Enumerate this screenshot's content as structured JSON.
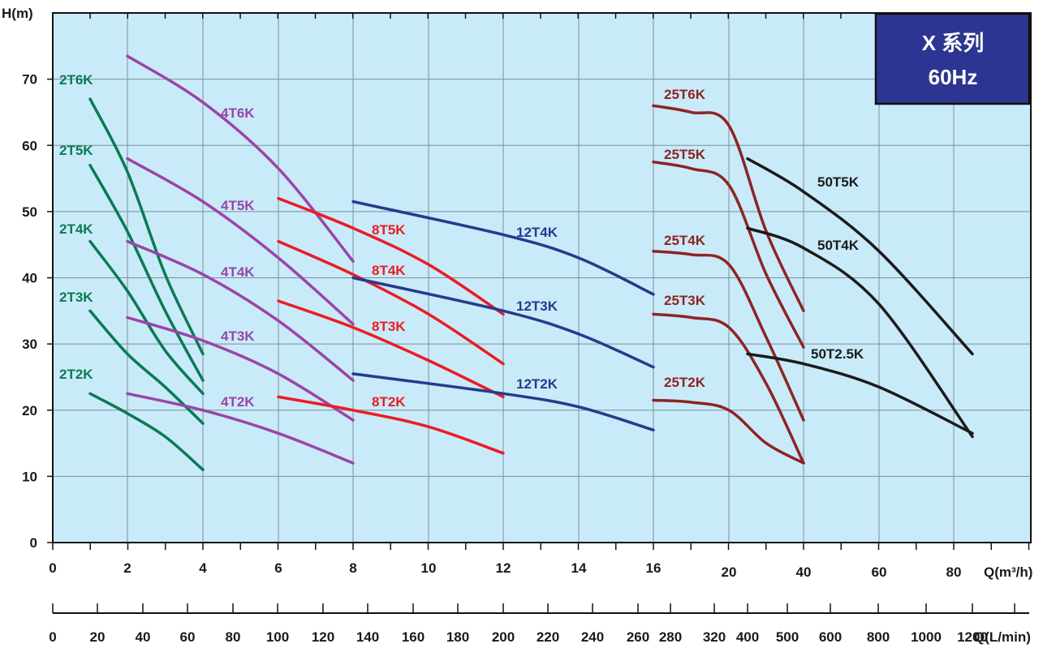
{
  "chart_data": {
    "type": "line",
    "title": "X 系列",
    "subtitle": "60Hz",
    "ylabel": "H(m)",
    "xlabel": "Q(m³/h)",
    "xlabel2": "Q(L/min)",
    "ylim": [
      0,
      80
    ],
    "yticks": [
      0,
      10,
      20,
      30,
      40,
      50,
      60,
      70
    ],
    "xtick_labels": [
      "0",
      "2",
      "4",
      "6",
      "8",
      "10",
      "12",
      "14",
      "16",
      "20",
      "40",
      "60",
      "80"
    ],
    "x2tick_labels": [
      "0",
      "20",
      "40",
      "60",
      "80",
      "100",
      "120",
      "140",
      "160",
      "180",
      "200",
      "220",
      "240",
      "260",
      "280",
      "320",
      "400",
      "500",
      "600",
      "800",
      "1000",
      "1200"
    ],
    "grid": true,
    "colors": {
      "background": "#c9ebf9",
      "grid": "#7d8f9a",
      "series_2T": "#0b7a55",
      "series_4T": "#9a45a8",
      "series_8T": "#ec1c24",
      "series_12T": "#283a8c",
      "series_25T": "#8e2424",
      "series_50T": "#1b1b1b",
      "badge": "#2d3592"
    },
    "series": [
      {
        "name": "2T6K",
        "points": [
          [
            1,
            67
          ],
          [
            2,
            56
          ],
          [
            3,
            40.5
          ],
          [
            4,
            28.5
          ]
        ]
      },
      {
        "name": "2T5K",
        "points": [
          [
            1,
            57
          ],
          [
            2,
            47
          ],
          [
            3,
            35
          ],
          [
            4,
            24.5
          ]
        ]
      },
      {
        "name": "2T4K",
        "points": [
          [
            1,
            45.5
          ],
          [
            2,
            38
          ],
          [
            3,
            29
          ],
          [
            4,
            22.5
          ]
        ]
      },
      {
        "name": "2T3K",
        "points": [
          [
            1,
            35
          ],
          [
            2,
            28.5
          ],
          [
            3,
            23.5
          ],
          [
            4,
            18
          ]
        ]
      },
      {
        "name": "2T2K",
        "points": [
          [
            1,
            22.5
          ],
          [
            2,
            19.5
          ],
          [
            3,
            16
          ],
          [
            4,
            11
          ]
        ]
      },
      {
        "name": "4T6K",
        "points": [
          [
            2,
            73.5
          ],
          [
            4,
            66.5
          ],
          [
            6,
            56.5
          ],
          [
            8,
            42.5
          ]
        ]
      },
      {
        "name": "4T5K",
        "points": [
          [
            2,
            58
          ],
          [
            4,
            51.5
          ],
          [
            6,
            43
          ],
          [
            8,
            33
          ]
        ]
      },
      {
        "name": "4T4K",
        "points": [
          [
            2,
            45.5
          ],
          [
            4,
            40.5
          ],
          [
            6,
            33.5
          ],
          [
            8,
            24.5
          ]
        ]
      },
      {
        "name": "4T3K",
        "points": [
          [
            2,
            34
          ],
          [
            4,
            30.5
          ],
          [
            6,
            25.5
          ],
          [
            8,
            18.5
          ]
        ]
      },
      {
        "name": "4T2K",
        "points": [
          [
            2,
            22.5
          ],
          [
            4,
            20
          ],
          [
            6,
            16.5
          ],
          [
            8,
            12
          ]
        ]
      },
      {
        "name": "8T5K",
        "points": [
          [
            6,
            52
          ],
          [
            8,
            47.5
          ],
          [
            10,
            42
          ],
          [
            12,
            34.5
          ]
        ]
      },
      {
        "name": "8T4K",
        "points": [
          [
            6,
            45.5
          ],
          [
            8,
            40.5
          ],
          [
            10,
            34.5
          ],
          [
            12,
            27
          ]
        ]
      },
      {
        "name": "8T3K",
        "points": [
          [
            6,
            36.5
          ],
          [
            8,
            32.5
          ],
          [
            10,
            27.5
          ],
          [
            12,
            22
          ]
        ]
      },
      {
        "name": "8T2K",
        "points": [
          [
            6,
            22
          ],
          [
            8,
            20
          ],
          [
            10,
            17.5
          ],
          [
            12,
            13.5
          ]
        ]
      },
      {
        "name": "12T4K",
        "points": [
          [
            8,
            51.5
          ],
          [
            12,
            46.5
          ],
          [
            14,
            43
          ],
          [
            16,
            37.5
          ]
        ]
      },
      {
        "name": "12T3K",
        "points": [
          [
            8,
            40
          ],
          [
            12,
            35
          ],
          [
            14,
            31.5
          ],
          [
            16,
            26.5
          ]
        ]
      },
      {
        "name": "12T2K",
        "points": [
          [
            8,
            25.5
          ],
          [
            12,
            22.5
          ],
          [
            14,
            20.5
          ],
          [
            16,
            17
          ]
        ]
      },
      {
        "name": "25T6K",
        "points": [
          [
            16,
            66
          ],
          [
            18,
            65
          ],
          [
            20,
            63
          ],
          [
            30,
            47
          ],
          [
            40,
            35
          ]
        ]
      },
      {
        "name": "25T5K",
        "points": [
          [
            16,
            57.5
          ],
          [
            18,
            56.5
          ],
          [
            20,
            54
          ],
          [
            30,
            40.5
          ],
          [
            40,
            29.5
          ]
        ]
      },
      {
        "name": "25T4K",
        "points": [
          [
            16,
            44
          ],
          [
            18,
            43.5
          ],
          [
            20,
            42
          ],
          [
            30,
            31
          ],
          [
            40,
            18.5
          ]
        ]
      },
      {
        "name": "25T3K",
        "points": [
          [
            16,
            34.5
          ],
          [
            18,
            34
          ],
          [
            20,
            32.5
          ],
          [
            30,
            24
          ],
          [
            40,
            12
          ]
        ]
      },
      {
        "name": "25T2K",
        "points": [
          [
            16,
            21.5
          ],
          [
            18,
            21.2
          ],
          [
            20,
            20
          ],
          [
            30,
            15
          ],
          [
            40,
            12
          ]
        ]
      },
      {
        "name": "50T5K",
        "points": [
          [
            25,
            58
          ],
          [
            40,
            53
          ],
          [
            60,
            44
          ],
          [
            85,
            28.5
          ]
        ]
      },
      {
        "name": "50T4K",
        "points": [
          [
            25,
            47.5
          ],
          [
            40,
            44.5
          ],
          [
            60,
            36
          ],
          [
            85,
            16
          ]
        ]
      },
      {
        "name": "50T2.5K",
        "points": [
          [
            25,
            28.5
          ],
          [
            40,
            27
          ],
          [
            60,
            23.5
          ],
          [
            85,
            16.5
          ]
        ]
      }
    ]
  }
}
